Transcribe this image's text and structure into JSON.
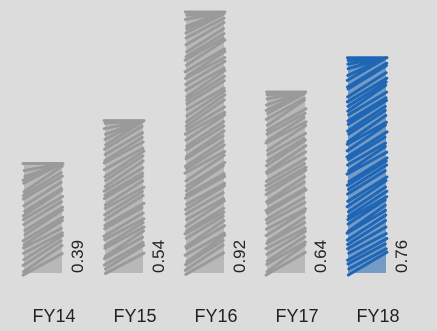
{
  "chart_data": {
    "type": "bar",
    "title": "",
    "xlabel": "",
    "ylabel": "",
    "categories": [
      "FY14",
      "FY15",
      "FY16",
      "FY17",
      "FY18"
    ],
    "values": [
      0.39,
      0.54,
      0.92,
      0.64,
      0.76
    ],
    "value_labels": [
      "0.39",
      "0.54",
      "0.92",
      "0.64",
      "0.76"
    ],
    "ylim": [
      0,
      1
    ],
    "grid": false,
    "style": "hand-drawn scribble fill",
    "colors": {
      "default_bar": "#9a9a9a",
      "highlight_bar": "#1f66b5",
      "background": "#dcdcdc"
    },
    "highlight_category": "FY18"
  }
}
